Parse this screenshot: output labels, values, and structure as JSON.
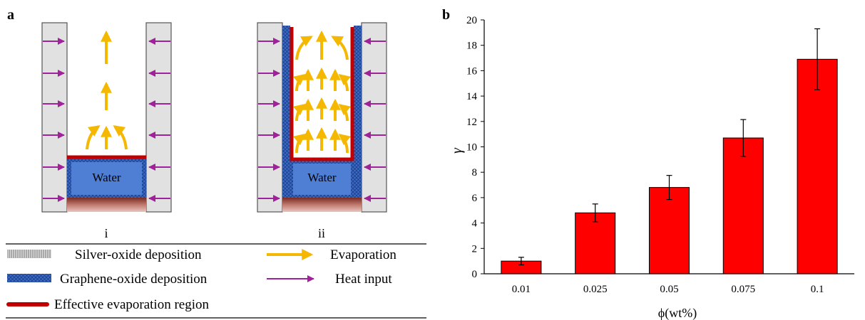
{
  "panel_a": {
    "label": "a",
    "sub_i_label": "i",
    "sub_ii_label": "ii",
    "water_label": "Water",
    "legend": {
      "silver": "Silver-oxide deposition",
      "graphene": "Graphene-oxide deposition",
      "effective": "Effective evaporation region",
      "evaporation": "Evaporation",
      "heat": "Heat input"
    },
    "colors": {
      "heat_arrow": "#a0229a",
      "evap_arrow": "#f5b800",
      "effective_line": "#c00000",
      "water": "#4f7fd4",
      "graphene": "#2f5fb5",
      "wall": "#e1e1e1",
      "heater": "#a04a3a"
    }
  },
  "panel_b": {
    "label": "b"
  },
  "chart_data": {
    "type": "bar",
    "categories": [
      "0.01",
      "0.025",
      "0.05",
      "0.075",
      "0.1"
    ],
    "values": [
      1.0,
      4.8,
      6.8,
      10.7,
      16.9
    ],
    "errors": [
      0.3,
      0.7,
      0.95,
      1.45,
      2.4
    ],
    "xlabel": "ϕ(wt%)",
    "ylabel": "γ",
    "ylim": [
      0,
      20
    ],
    "yticks": [
      0,
      2,
      4,
      6,
      8,
      10,
      12,
      14,
      16,
      18,
      20
    ],
    "bar_color": "#ff0000",
    "grid": false
  }
}
